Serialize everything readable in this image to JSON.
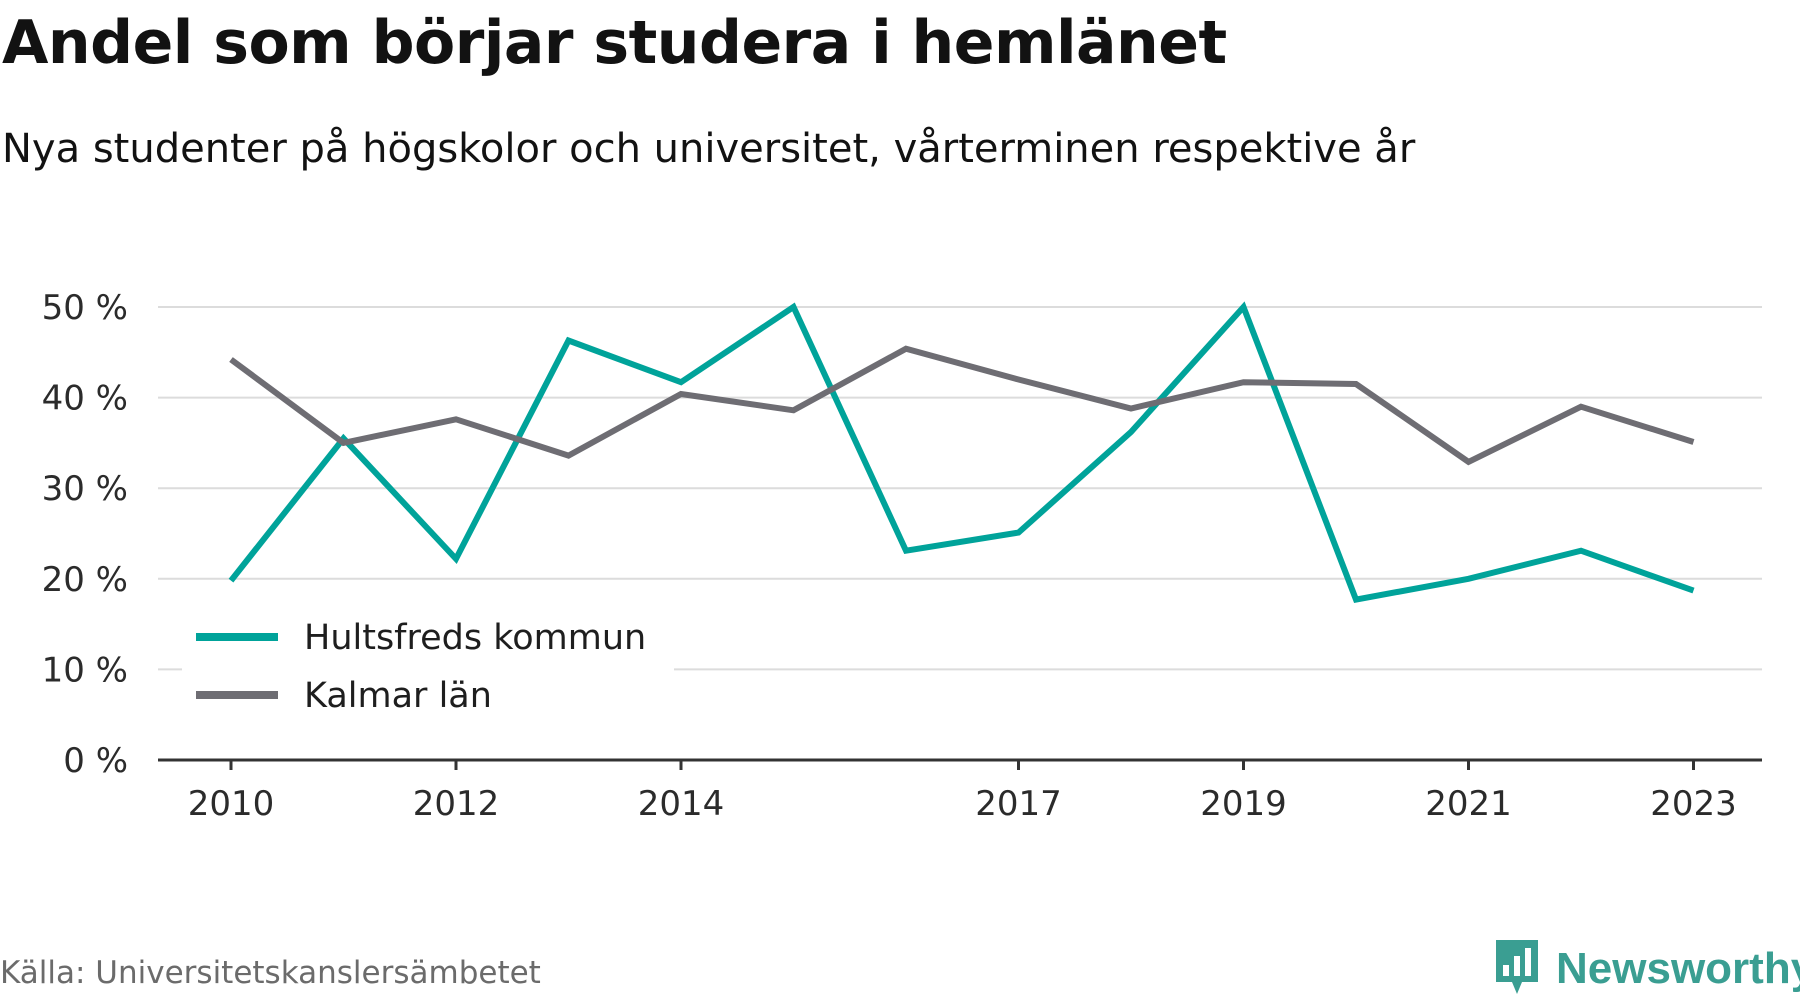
{
  "title": "Andel som börjar studera i hemlänet",
  "subtitle": "Nya studenter på högskolor och universitet, vårterminen respektive år",
  "source": "Källa: Universitetskanslersämbetet",
  "brand": {
    "name": "Newsworthy",
    "icon": "newsworthy-logo-icon",
    "color": "#3a9e92"
  },
  "chart_data": {
    "type": "line",
    "x": [
      2010,
      2011,
      2012,
      2013,
      2014,
      2015,
      2016,
      2017,
      2018,
      2019,
      2020,
      2021,
      2022,
      2023
    ],
    "x_tick_labels": [
      "2010",
      "2012",
      "2014",
      "2017",
      "2019",
      "2021",
      "2023"
    ],
    "y_tick_labels": [
      "0 %",
      "10 %",
      "20 %",
      "30 %",
      "40 %",
      "50 %"
    ],
    "ylim": [
      0,
      50
    ],
    "y_unit": "%",
    "grid": true,
    "legend_position": "bottom-left",
    "series": [
      {
        "name": "Hultsfreds kommun",
        "color": "#00a39a",
        "values": [
          19.8,
          35.5,
          22.2,
          46.3,
          41.7,
          50.0,
          23.1,
          25.1,
          36.2,
          50.0,
          17.7,
          20.0,
          23.1,
          18.7
        ]
      },
      {
        "name": "Kalmar län",
        "color": "#6e6d73",
        "values": [
          44.2,
          35.0,
          37.6,
          33.6,
          40.4,
          38.6,
          45.4,
          42.0,
          38.8,
          41.7,
          41.5,
          32.9,
          39.0,
          35.1
        ]
      }
    ]
  }
}
